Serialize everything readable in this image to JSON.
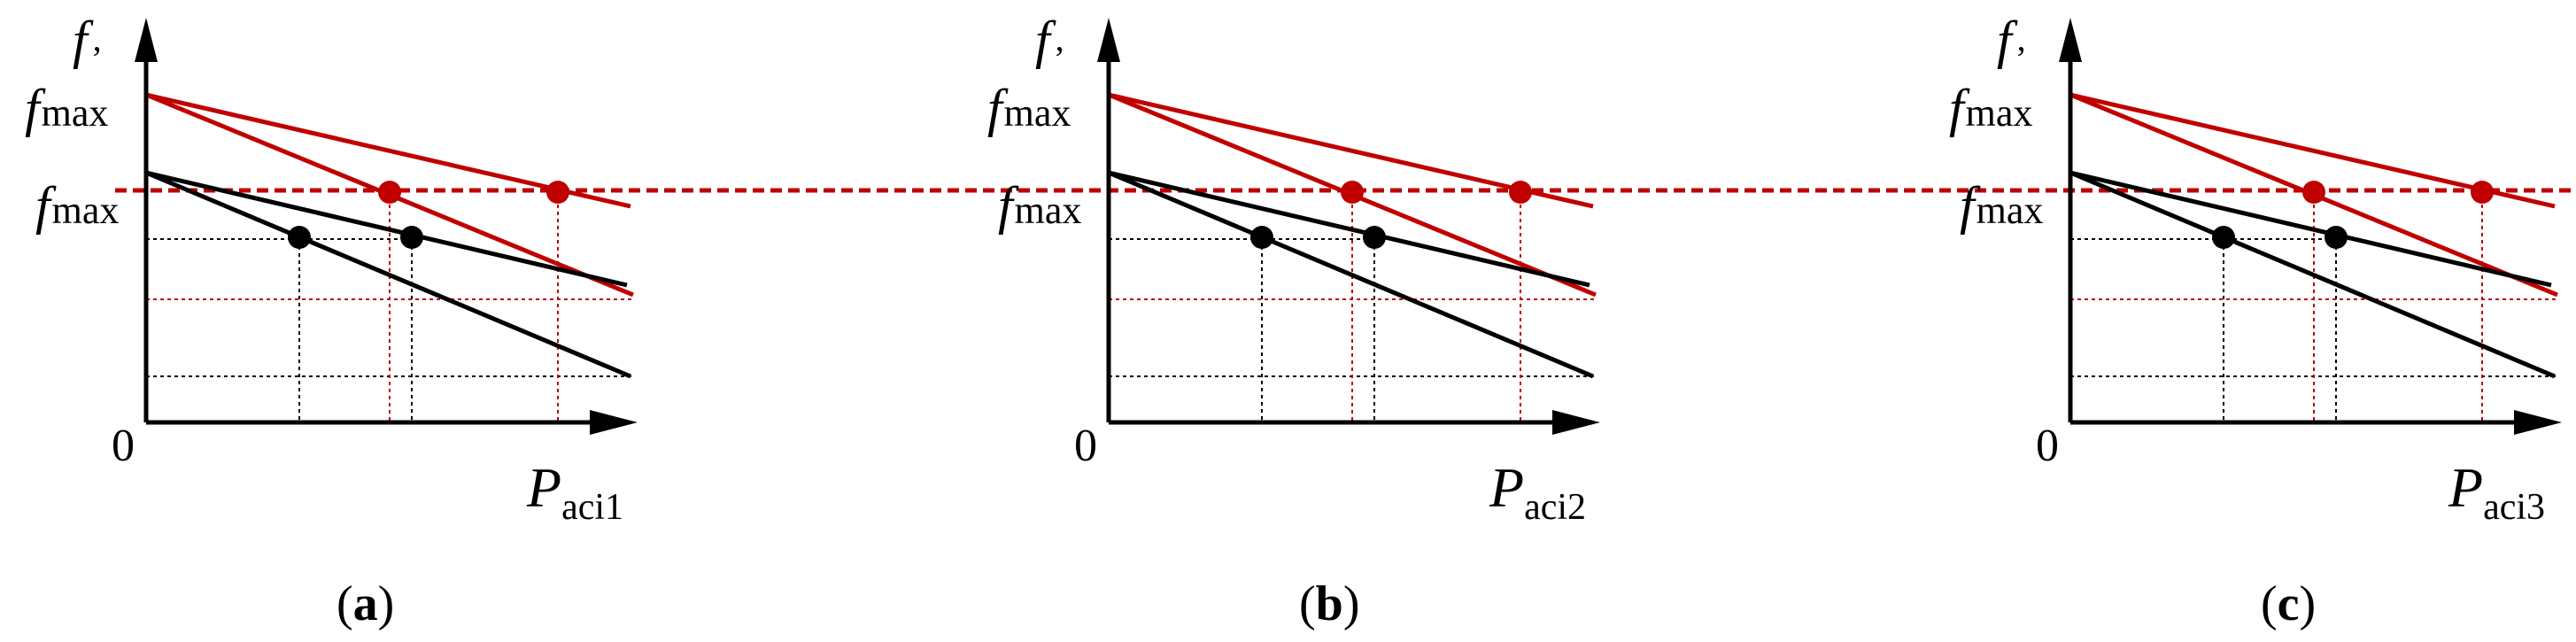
{
  "colors": {
    "black": "#000000",
    "red": "#c00000"
  },
  "axis_labels": {
    "origin": "0",
    "y_f": "f",
    "y_comma": ",",
    "y_max_sub": "max",
    "x_P": "P"
  },
  "panels": [
    {
      "id": "a",
      "x_subscript": "aci1",
      "caption_open": "(",
      "caption_letter": "a",
      "caption_close": ")"
    },
    {
      "id": "b",
      "x_subscript": "aci2",
      "caption_open": "(",
      "caption_letter": "b",
      "caption_close": ")"
    },
    {
      "id": "c",
      "x_subscript": "aci3",
      "caption_open": "(",
      "caption_letter": "c",
      "caption_close": ")"
    }
  ],
  "icons": {
    "y_arrow": "arrowhead-up-icon",
    "x_arrow": "arrowhead-right-icon"
  }
}
